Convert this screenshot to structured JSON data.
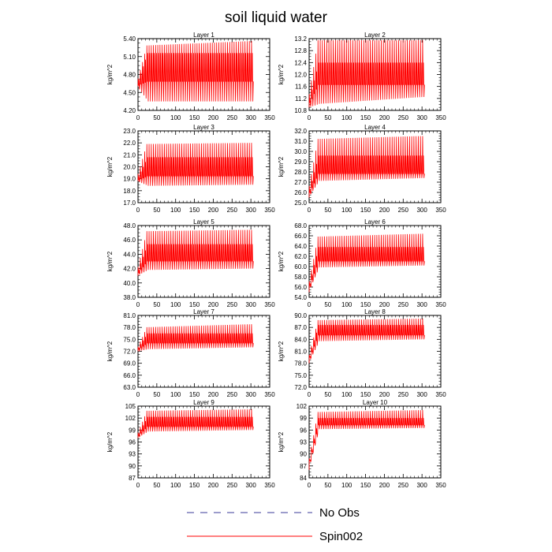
{
  "chart_data": {
    "type": "line",
    "title": "soil liquid water",
    "colors": {
      "spin002": "#ff0000",
      "no_obs": "#3a3a9a"
    },
    "legend": {
      "placement": "bottom",
      "items": [
        {
          "label": "No Obs",
          "style": "dashed",
          "color": "#3a3a9a"
        },
        {
          "label": "Spin002",
          "style": "solid",
          "color": "#ff0000"
        }
      ]
    },
    "x_axis": {
      "range": [
        0,
        350
      ],
      "ticks": [
        "0",
        "50",
        "100",
        "150",
        "200",
        "250",
        "300",
        "350"
      ],
      "data_end": 307,
      "cycles": 53
    },
    "panels": [
      {
        "title": "Layer 1",
        "ylabel": "kg/m^2",
        "ylim": [
          4.2,
          5.4
        ],
        "yticks": [
          "4.20",
          "4.50",
          "4.80",
          "5.10",
          "5.40"
        ],
        "start": 4.6,
        "min_start": 4.35,
        "min_end": 4.35,
        "max_start": 5.28,
        "max_end": 5.36,
        "mid_low": 4.68,
        "mid_high": 5.16
      },
      {
        "title": "Layer 2",
        "ylabel": "kg/m^2",
        "ylim": [
          10.8,
          13.2
        ],
        "yticks": [
          "10.8",
          "11.2",
          "11.6",
          "12.0",
          "12.4",
          "12.8",
          "13.2"
        ],
        "start": 10.9,
        "min_start": 11.0,
        "min_end": 11.25,
        "max_start": 13.15,
        "max_end": 13.15,
        "mid_low": 11.65,
        "mid_high": 12.4
      },
      {
        "title": "Layer 3",
        "ylabel": "kg/m^2",
        "ylim": [
          17.0,
          23.0
        ],
        "yticks": [
          "17.0",
          "18.0",
          "19.0",
          "20.0",
          "21.0",
          "22.0",
          "23.0"
        ],
        "start": 18.8,
        "min_start": 18.4,
        "min_end": 18.5,
        "max_start": 21.9,
        "max_end": 22.0,
        "mid_low": 19.2,
        "mid_high": 20.8
      },
      {
        "title": "Layer 4",
        "ylabel": "kg/m^2",
        "ylim": [
          25.0,
          32.0
        ],
        "yticks": [
          "25.0",
          "26.0",
          "27.0",
          "28.0",
          "29.0",
          "30.0",
          "31.0",
          "32.0"
        ],
        "start": 25.5,
        "min_start": 27.1,
        "min_end": 27.4,
        "max_start": 31.2,
        "max_end": 31.5,
        "mid_low": 27.8,
        "mid_high": 29.6
      },
      {
        "title": "Layer 5",
        "ylabel": "kg/m^2",
        "ylim": [
          38.0,
          48.0
        ],
        "yticks": [
          "38.0",
          "40.0",
          "42.0",
          "44.0",
          "46.0",
          "48.0"
        ],
        "start": 41.0,
        "min_start": 41.8,
        "min_end": 42.0,
        "max_start": 47.2,
        "max_end": 47.4,
        "mid_low": 43.0,
        "mid_high": 45.4
      },
      {
        "title": "Layer 6",
        "ylabel": "kg/m^2",
        "ylim": [
          54.0,
          68.0
        ],
        "yticks": [
          "54.0",
          "56.0",
          "58.0",
          "60.0",
          "62.0",
          "64.0",
          "66.0",
          "68.0"
        ],
        "start": 55.0,
        "min_start": 59.8,
        "min_end": 60.2,
        "max_start": 65.8,
        "max_end": 66.4,
        "mid_low": 61.0,
        "mid_high": 63.8
      },
      {
        "title": "Layer 7",
        "ylabel": "kg/m^2",
        "ylim": [
          63.0,
          81.0
        ],
        "yticks": [
          "63.0",
          "66.0",
          "69.0",
          "72.0",
          "75.0",
          "78.0",
          "81.0"
        ],
        "start": 72.0,
        "min_start": 72.5,
        "min_end": 73.0,
        "max_start": 78.0,
        "max_end": 78.8,
        "mid_low": 74.0,
        "mid_high": 76.5
      },
      {
        "title": "Layer 8",
        "ylabel": "kg/m^2",
        "ylim": [
          72.0,
          90.0
        ],
        "yticks": [
          "72.0",
          "75.0",
          "78.0",
          "81.0",
          "84.0",
          "87.0",
          "90.0"
        ],
        "start": 78.0,
        "min_start": 83.5,
        "min_end": 84.0,
        "max_start": 88.8,
        "max_end": 89.2,
        "mid_low": 85.0,
        "mid_high": 87.6
      },
      {
        "title": "Layer 9",
        "ylabel": "kg/m^2",
        "ylim": [
          87,
          105
        ],
        "yticks": [
          "87",
          "90",
          "93",
          "96",
          "99",
          "102",
          "105"
        ],
        "start": 97.0,
        "min_start": 98.6,
        "min_end": 99.0,
        "max_start": 103.8,
        "max_end": 104.2,
        "mid_low": 99.8,
        "mid_high": 102.3
      },
      {
        "title": "Layer 10",
        "ylabel": "kg/m^2",
        "ylim": [
          84,
          102
        ],
        "yticks": [
          "84",
          "87",
          "90",
          "93",
          "96",
          "99",
          "102"
        ],
        "start": 86.0,
        "min_start": 96.2,
        "min_end": 96.5,
        "max_start": 100.5,
        "max_end": 101.0,
        "mid_low": 97.2,
        "mid_high": 99.0
      }
    ]
  }
}
